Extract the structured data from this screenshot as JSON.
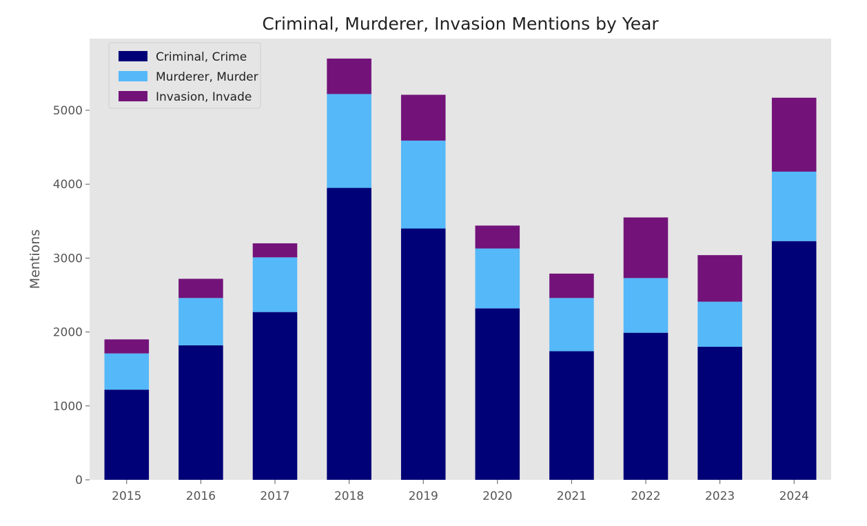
{
  "chart_data": {
    "type": "bar",
    "stacked": true,
    "title": "Criminal, Murderer, Invasion Mentions by Year",
    "xlabel": "",
    "ylabel": "Mentions",
    "categories": [
      "2015",
      "2016",
      "2017",
      "2018",
      "2019",
      "2020",
      "2021",
      "2022",
      "2023",
      "2024"
    ],
    "series": [
      {
        "name": "Criminal, Crime",
        "color": "#000077",
        "values": [
          1220,
          1820,
          2270,
          3950,
          3400,
          2320,
          1740,
          1990,
          1800,
          3230
        ]
      },
      {
        "name": "Murderer, Murder",
        "color": "#55b8f8",
        "values": [
          490,
          640,
          740,
          1270,
          1190,
          810,
          720,
          740,
          610,
          940
        ]
      },
      {
        "name": "Invasion, Invade",
        "color": "#73137a",
        "values": [
          190,
          260,
          190,
          480,
          620,
          310,
          330,
          820,
          630,
          1000
        ]
      }
    ],
    "ylim": [
      0,
      5970
    ],
    "yticks": [
      "0",
      "1000",
      "2000",
      "3000",
      "4000",
      "5000"
    ],
    "grid": false,
    "legend_position": "top-left",
    "plot_background": "#e5e5e5"
  }
}
